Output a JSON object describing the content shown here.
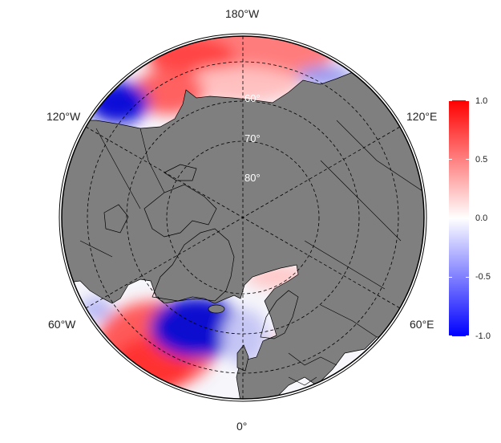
{
  "map": {
    "projection": "north-polar-stereographic",
    "land_color": "#7f7f7f",
    "ocean_scale": "red-white-blue",
    "longitude_labels": [
      "180°W",
      "120°W",
      "120°E",
      "60°W",
      "60°E",
      "0°"
    ],
    "latitude_labels": [
      "60°",
      "70°",
      "80°"
    ]
  },
  "colorbar": {
    "ticks": [
      "1.0",
      "0.5",
      "0.0",
      "-0.5",
      "-1.0"
    ],
    "top_color": "#ff0000",
    "mid_color": "#ffffff",
    "bottom_color": "#0000ff"
  }
}
